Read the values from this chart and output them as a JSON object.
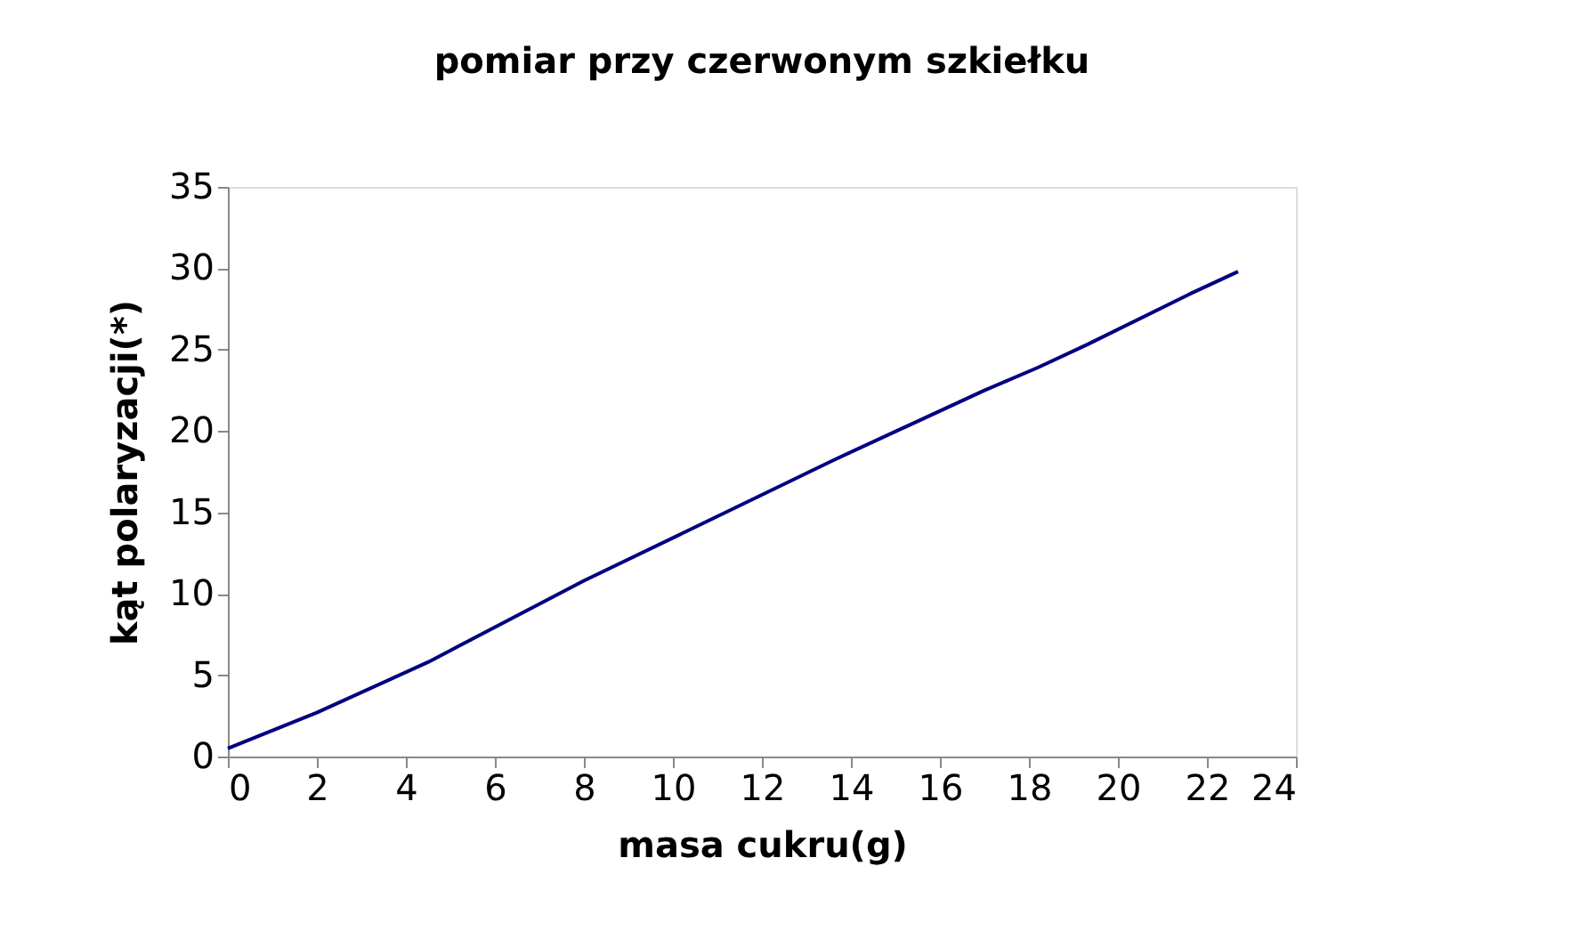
{
  "chart_data": {
    "type": "line",
    "title": "pomiar przy czerwonym szkiełku",
    "xlabel": "masa cukru(g)",
    "ylabel": "kąt polaryzacji(*)",
    "x": [
      0,
      2,
      4.5,
      8,
      10.2,
      13.6,
      17,
      18.2,
      19.3,
      21.6,
      22.7
    ],
    "series": [
      {
        "color": "#000080",
        "values": [
          0.5,
          2.7,
          5.8,
          10.8,
          13.7,
          18.2,
          22.5,
          23.9,
          25.3,
          28.4,
          29.8
        ]
      }
    ],
    "xlim": [
      0,
      24
    ],
    "xticks": [
      0,
      2,
      4,
      6,
      8,
      10,
      12,
      14,
      16,
      18,
      20,
      22,
      24
    ],
    "ylim": [
      0,
      35
    ],
    "yticks": [
      0,
      5,
      10,
      15,
      20,
      25,
      30,
      35
    ],
    "grid": false,
    "marker": "none",
    "line_style": "solid"
  }
}
